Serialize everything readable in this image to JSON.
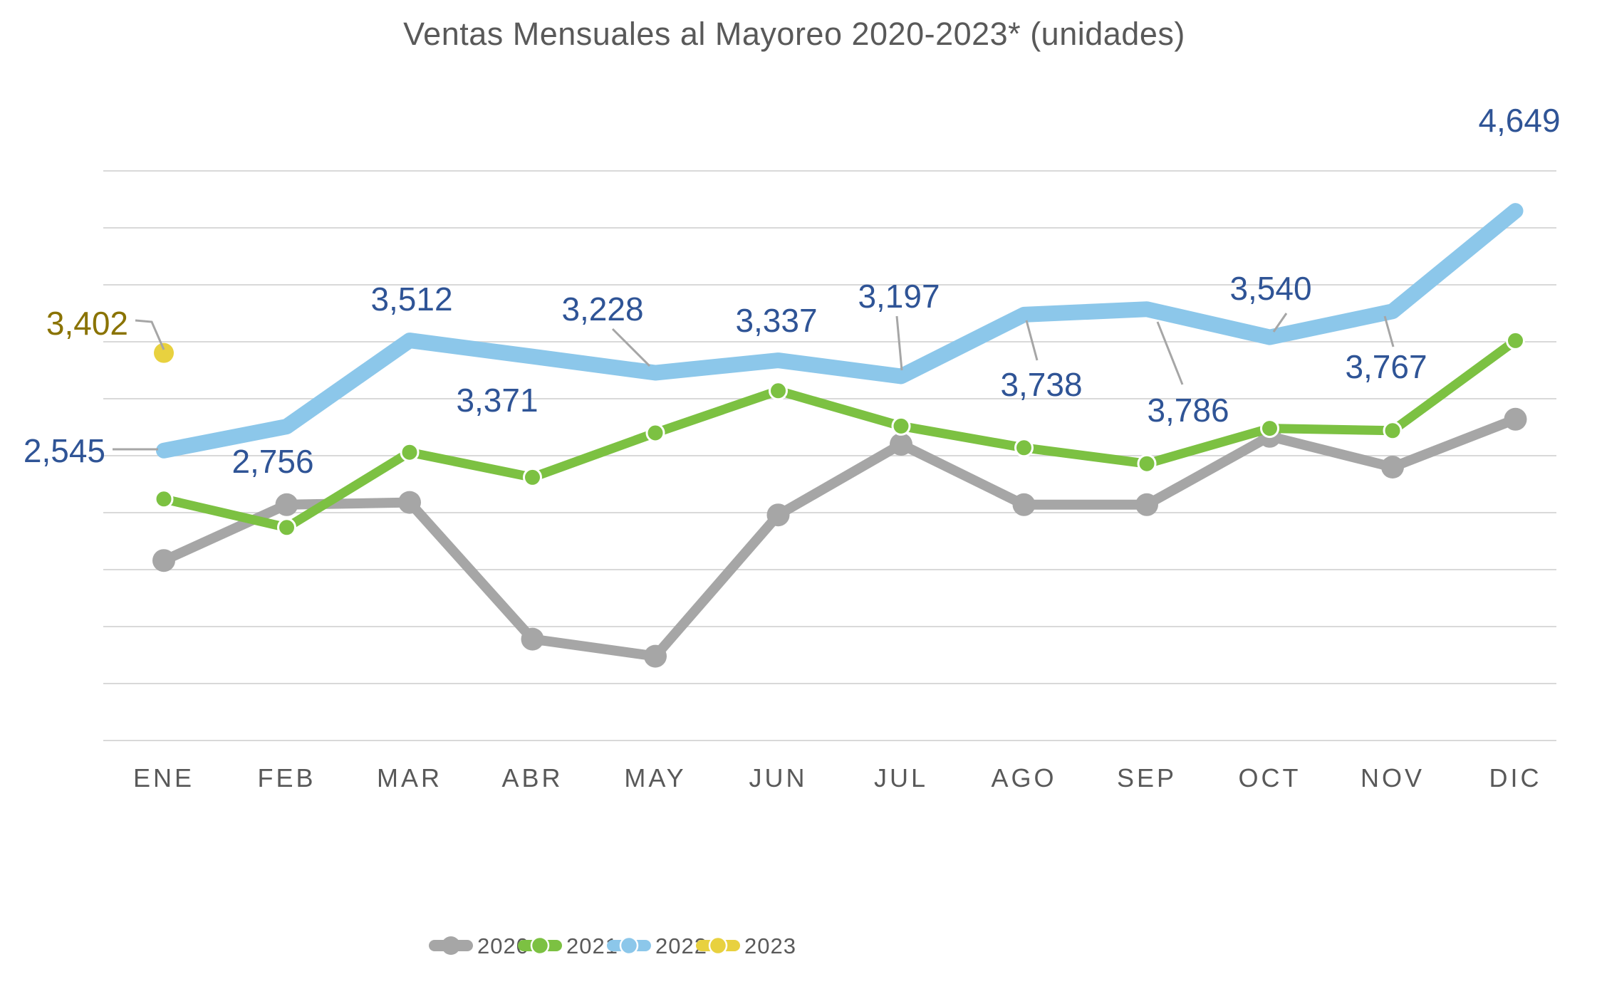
{
  "page": {
    "background": "#FFFFFF"
  },
  "chart_data": {
    "type": "line",
    "title": "Ventas Mensuales al Mayoreo 2020-2023* (unidades)",
    "title_color": "#595959",
    "categories": [
      "ENE",
      "FEB",
      "MAR",
      "ABR",
      "MAY",
      "JUN",
      "JUL",
      "AGO",
      "SEP",
      "OCT",
      "NOV",
      "DIC"
    ],
    "xlabel": "",
    "ylabel": "",
    "ylim": [
      0,
      5000
    ],
    "grid_step": 500,
    "grid": "horizontal",
    "gridline_color": "#D9D9D9",
    "axis_label_color": "#595959",
    "leader_line_color": "#A6A6A6",
    "legend_position": "bottom",
    "series": [
      {
        "name": "2020",
        "color": "#A6A6A6",
        "values": [
          1580,
          2070,
          2090,
          890,
          740,
          1980,
          2600,
          2070,
          2070,
          2670,
          2400,
          2820
        ]
      },
      {
        "name": "2021",
        "color": "#7CC142",
        "values": [
          2120,
          1870,
          2530,
          2310,
          2700,
          3070,
          2760,
          2570,
          2430,
          2740,
          2720,
          3510
        ]
      },
      {
        "name": "2022",
        "color": "#8CC7EA",
        "values": [
          2545,
          2756,
          3512,
          3371,
          3228,
          3337,
          3197,
          3738,
          3786,
          3540,
          3767,
          4649
        ]
      },
      {
        "name": "2023",
        "color": "#E8D13F",
        "values": [
          3402,
          null,
          null,
          null,
          null,
          null,
          null,
          null,
          null,
          null,
          null,
          null
        ]
      }
    ],
    "data_labels": {
      "2022": [
        "2,545",
        "2,756",
        "3,512",
        "3,371",
        "3,228",
        "3,337",
        "3,197",
        "3,738",
        "3,786",
        "3,540",
        "3,767",
        "4,649"
      ],
      "2023": [
        "3,402",
        null,
        null,
        null,
        null,
        null,
        null,
        null,
        null,
        null,
        null,
        null
      ]
    },
    "data_label_colors": {
      "2022": "#2F5496",
      "2023": "#8A7300"
    },
    "legend_labels": [
      "2020",
      "2021",
      "2022",
      "2023"
    ]
  }
}
